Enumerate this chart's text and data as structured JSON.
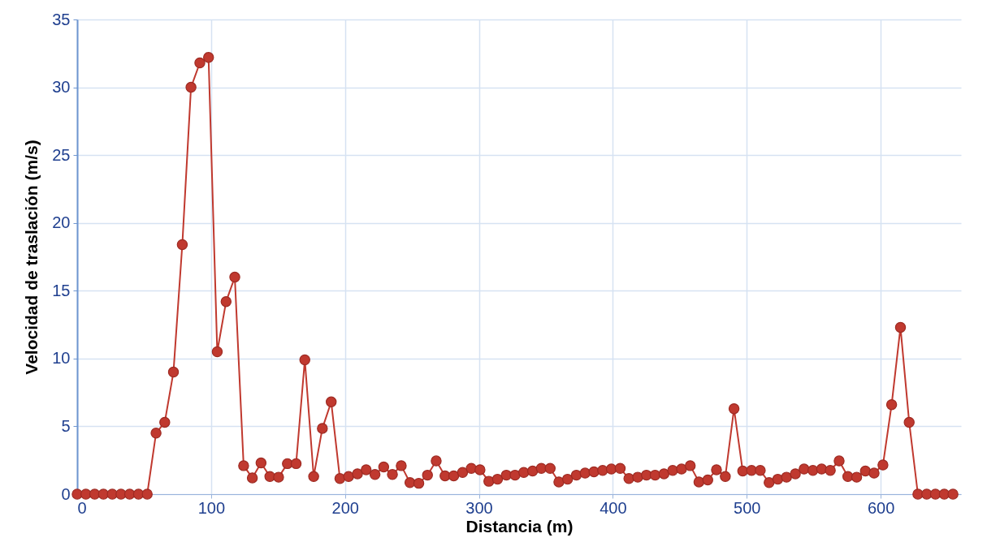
{
  "chart_data": {
    "type": "line",
    "xlabel": "Distancia (m)",
    "ylabel": "Velocidad de traslación (m/s)",
    "x": [
      0,
      6.5,
      13.1,
      19.6,
      26.2,
      32.7,
      39.2,
      45.8,
      52.3,
      58.9,
      65.4,
      71.9,
      78.5,
      85,
      91.6,
      98.1,
      104.6,
      111.2,
      117.7,
      124.3,
      130.8,
      137.3,
      143.9,
      150.4,
      157,
      163.5,
      170,
      176.6,
      183.1,
      189.7,
      196.2,
      202.7,
      209.3,
      215.8,
      222.4,
      228.9,
      235.4,
      242,
      248.5,
      255.1,
      261.6,
      268.1,
      274.7,
      281.2,
      287.8,
      294.3,
      300.8,
      307.4,
      313.9,
      320.5,
      327,
      333.5,
      340.1,
      346.6,
      353.2,
      359.7,
      366.2,
      372.8,
      379.3,
      385.9,
      392.4,
      398.9,
      405.5,
      412,
      418.6,
      425.1,
      431.6,
      438.2,
      444.7,
      451.3,
      457.8,
      464.3,
      470.9,
      477.4,
      484,
      490.5,
      497,
      503.6,
      510.1,
      516.7,
      523.2,
      529.7,
      536.3,
      542.8,
      549.4,
      555.9,
      562.4,
      569,
      575.5,
      582.1,
      588.6,
      595.1,
      601.7,
      608.2,
      614.8,
      621.3,
      627.8,
      634.4,
      640.9,
      647.5,
      654
    ],
    "series": [
      {
        "color": "#c0392f",
        "values": [
          0,
          0,
          0,
          0,
          0,
          0,
          0,
          0,
          0,
          4.5,
          5.3,
          9.0,
          18.4,
          30.0,
          31.8,
          32.2,
          10.5,
          14.2,
          16.0,
          2.1,
          1.2,
          2.3,
          1.3,
          1.25,
          2.25,
          2.25,
          9.9,
          1.3,
          4.85,
          6.8,
          1.15,
          1.3,
          1.5,
          1.8,
          1.45,
          2.0,
          1.45,
          2.1,
          0.85,
          0.8,
          1.4,
          2.45,
          1.35,
          1.35,
          1.6,
          1.9,
          1.8,
          0.95,
          1.1,
          1.4,
          1.4,
          1.6,
          1.7,
          1.9,
          1.9,
          0.9,
          1.1,
          1.4,
          1.55,
          1.65,
          1.75,
          1.85,
          1.9,
          1.15,
          1.25,
          1.4,
          1.4,
          1.5,
          1.75,
          1.85,
          2.1,
          0.9,
          1.05,
          1.8,
          1.3,
          6.3,
          1.7,
          1.75,
          1.75,
          0.85,
          1.1,
          1.25,
          1.5,
          1.85,
          1.75,
          1.85,
          1.75,
          2.45,
          1.3,
          1.25,
          1.7,
          1.55,
          2.15,
          6.6,
          12.3,
          5.3,
          0,
          0,
          0,
          0,
          0
        ]
      }
    ],
    "xlim": [
      0,
      660
    ],
    "xticks": [
      0,
      100,
      200,
      300,
      400,
      500,
      600
    ],
    "ylim": [
      0,
      35
    ],
    "yticks": [
      0,
      5,
      10,
      15,
      20,
      25,
      30,
      35
    ],
    "grid": true,
    "marker": "circle",
    "line_style": "solid"
  }
}
